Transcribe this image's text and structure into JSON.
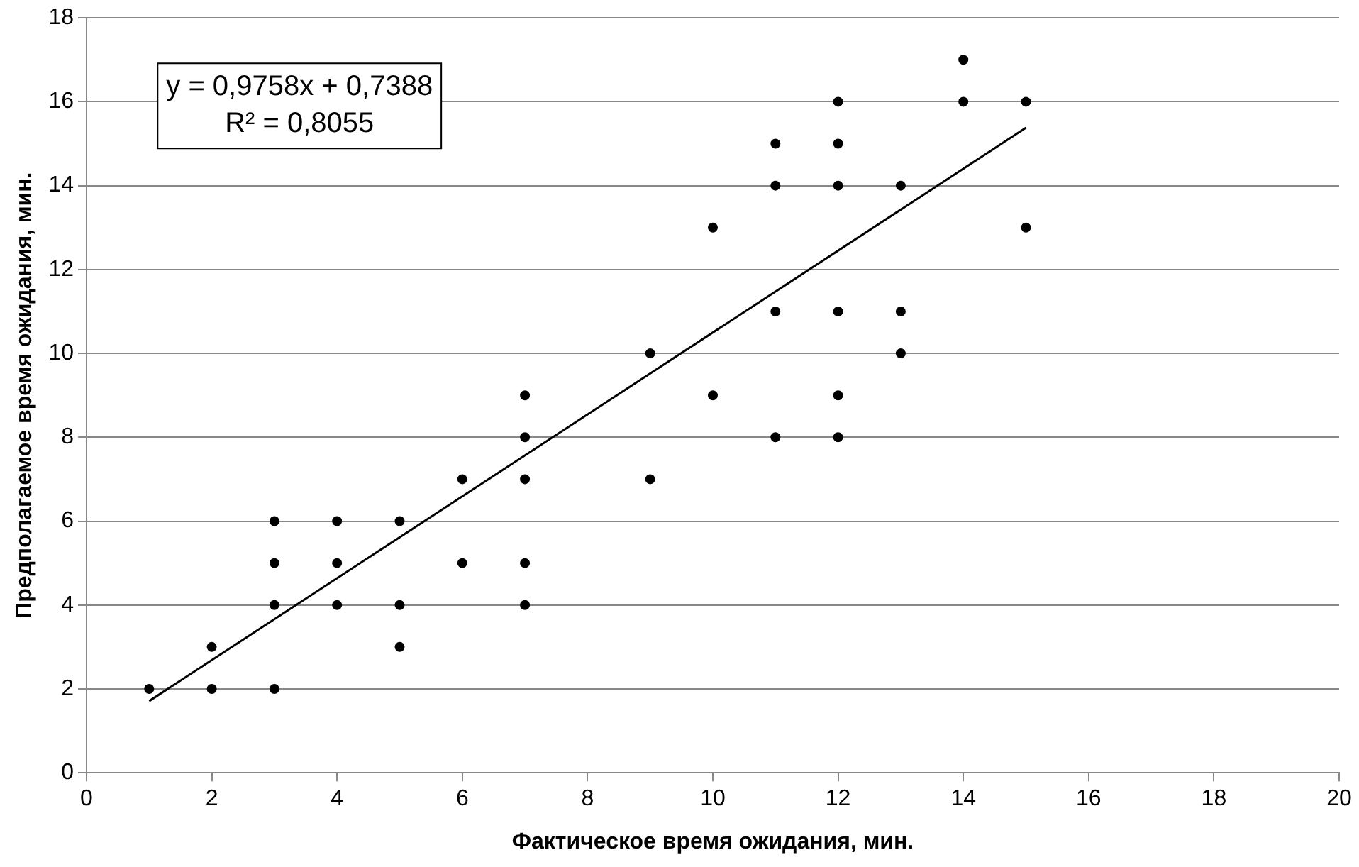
{
  "chart_data": {
    "type": "scatter",
    "xlabel": "Фактическое время ожидания, мин.",
    "ylabel": "Предполагаемое время ожидания, мин.",
    "xlim": [
      0,
      20
    ],
    "xticks": [
      0,
      2,
      4,
      6,
      8,
      10,
      12,
      14,
      16,
      18,
      20
    ],
    "ylim": [
      0,
      18
    ],
    "yticks": [
      0,
      2,
      4,
      6,
      8,
      10,
      12,
      14,
      16,
      18
    ],
    "grid": "y",
    "legend": false,
    "series": [
      {
        "type": "scatter",
        "marker": "circle",
        "color": "#000000",
        "x": [
          1,
          2,
          2,
          3,
          3,
          3,
          3,
          4,
          4,
          4,
          5,
          5,
          5,
          6,
          6,
          7,
          7,
          7,
          7,
          7,
          9,
          9,
          10,
          10,
          11,
          11,
          11,
          11,
          12,
          12,
          12,
          12,
          12,
          12,
          13,
          13,
          13,
          14,
          14,
          15,
          15
        ],
        "values": [
          2,
          3,
          2,
          6,
          5,
          4,
          2,
          6,
          5,
          4,
          6,
          4,
          3,
          7,
          5,
          9,
          8,
          7,
          5,
          4,
          10,
          7,
          13,
          9,
          15,
          14,
          11,
          8,
          16,
          15,
          14,
          11,
          9,
          8,
          14,
          11,
          10,
          17,
          16,
          16,
          13
        ]
      },
      {
        "type": "line",
        "marker": "none",
        "color": "#000000",
        "x": [
          1,
          15
        ],
        "values": [
          1.71,
          15.38
        ]
      }
    ],
    "annotations": [
      "y = 0,9758x + 0,7388",
      "R² = 0,8055"
    ]
  }
}
